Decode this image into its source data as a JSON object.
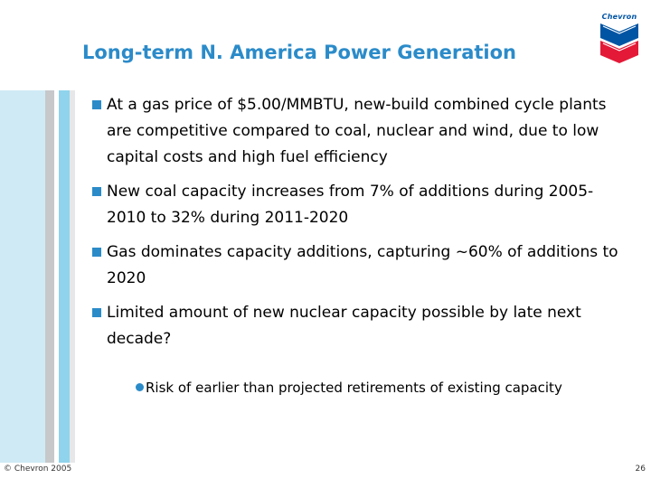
{
  "slide": {
    "title": "Long-term N. America Power Generation",
    "logo_text": "Chevron",
    "bullets": [
      "At a gas price of $5.00/MMBTU, new-build combined cycle plants are competitive compared to coal, nuclear and wind, due to low capital costs and high fuel efficiency",
      "New coal capacity increases from 7% of additions during 2005-2010 to 32% during 2011-2020",
      "Gas dominates capacity additions, capturing ~60% of additions to 2020",
      "Limited amount of new nuclear capacity possible by late next decade?"
    ],
    "sub_bullets": [
      "Risk of earlier than projected retirements of existing capacity"
    ]
  },
  "footer": {
    "copyright": "© Chevron 2005",
    "page_number": "26"
  },
  "colors": {
    "accent": "#2b8bc9",
    "sidebar_light": "#cfeaf5",
    "sidebar_blue": "#8fd3ec",
    "chevron_blue": "#0054a4",
    "chevron_red": "#e31937"
  }
}
